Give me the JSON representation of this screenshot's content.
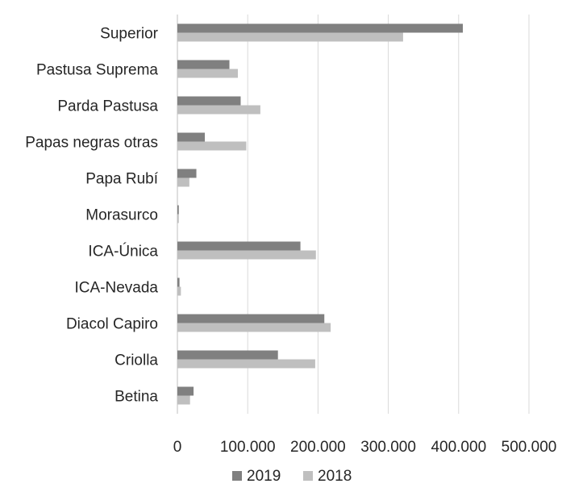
{
  "chart_data": {
    "type": "bar",
    "orientation": "horizontal",
    "categories": [
      "Superior",
      "Pastusa Suprema",
      "Parda Pastusa",
      "Papas negras otras",
      "Papa Rubí",
      "Morasurco",
      "ICA-Única",
      "ICA-Nevada",
      "Diacol Capiro",
      "Criolla",
      "Betina"
    ],
    "series": [
      {
        "name": "2019",
        "color": "#808080",
        "values": [
          406000,
          74000,
          90000,
          39000,
          27000,
          2000,
          175000,
          3000,
          209000,
          143000,
          23000
        ]
      },
      {
        "name": "2018",
        "color": "#bfbfbf",
        "values": [
          321000,
          86000,
          118000,
          98000,
          17000,
          2000,
          197000,
          5000,
          218000,
          196000,
          18000
        ]
      }
    ],
    "xlim": [
      0,
      500000
    ],
    "x_ticks": [
      0,
      100000,
      200000,
      300000,
      400000,
      500000
    ],
    "x_tick_labels": [
      "0",
      "100.000",
      "200.000",
      "300.000",
      "400.000",
      "500.000"
    ],
    "grid": "vertical",
    "legend_position": "bottom",
    "title": "",
    "xlabel": "",
    "ylabel": ""
  }
}
